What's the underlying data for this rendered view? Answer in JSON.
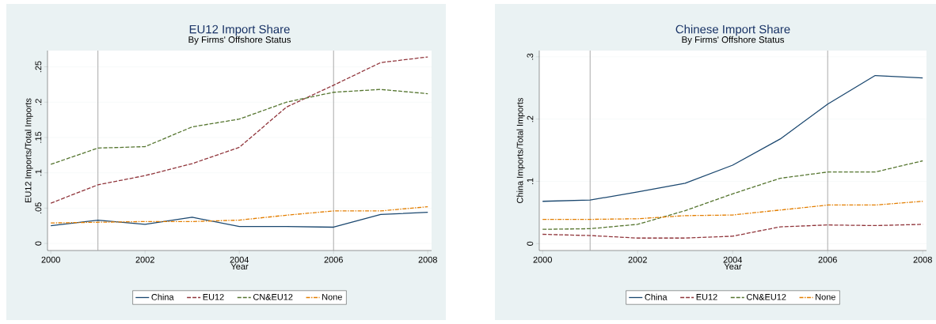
{
  "chart_data": [
    {
      "type": "line",
      "title": "EU12 Import Share",
      "subtitle": "By Firms' Offshore Status",
      "xlabel": "Year",
      "ylabel": "EU12 Imports/Total Imports",
      "x": [
        2000,
        2001,
        2002,
        2003,
        2004,
        2005,
        2006,
        2007,
        2008
      ],
      "series": [
        {
          "name": "China",
          "color": "#1a476f",
          "line_style": "solid",
          "values": [
            0.025,
            0.033,
            0.027,
            0.037,
            0.024,
            0.024,
            0.023,
            0.041,
            0.044
          ]
        },
        {
          "name": "EU12",
          "color": "#90353b",
          "line_style": "dashed",
          "values": [
            0.057,
            0.083,
            0.096,
            0.113,
            0.136,
            0.193,
            0.224,
            0.256,
            0.264
          ]
        },
        {
          "name": "CN&EU12",
          "color": "#55752f",
          "line_style": "dashed",
          "values": [
            0.112,
            0.135,
            0.137,
            0.165,
            0.176,
            0.2,
            0.214,
            0.218,
            0.212
          ]
        },
        {
          "name": "None",
          "color": "#e37e00",
          "line_style": "dashdot",
          "values": [
            0.029,
            0.03,
            0.031,
            0.031,
            0.033,
            0.04,
            0.046,
            0.046,
            0.052
          ]
        }
      ],
      "xlim": [
        1999.93,
        2008.08
      ],
      "ylim": [
        -0.01,
        0.273
      ],
      "xticks": [
        2000,
        2002,
        2004,
        2006,
        2008
      ],
      "yticks": [
        {
          "value": 0,
          "label": "0"
        },
        {
          "value": 0.05,
          "label": ".05"
        },
        {
          "value": 0.1,
          "label": ".1"
        },
        {
          "value": 0.15,
          "label": ".15"
        },
        {
          "value": 0.2,
          "label": ".2"
        },
        {
          "value": 0.25,
          "label": ".25"
        }
      ],
      "ref_lines": [
        {
          "axis": "x",
          "value": 2001,
          "color": "#a0a0a0"
        },
        {
          "axis": "x",
          "value": 2006,
          "color": "#a0a0a0"
        }
      ],
      "grid": "y",
      "legend": "bottom",
      "marker": "none"
    },
    {
      "type": "line",
      "title": "Chinese Import Share",
      "subtitle": "By Firms' Offshore Status",
      "xlabel": "Year",
      "ylabel": "China Imports/Total Imports",
      "x": [
        2000,
        2001,
        2002,
        2003,
        2004,
        2005,
        2006,
        2007,
        2008
      ],
      "series": [
        {
          "name": "China",
          "color": "#1a476f",
          "line_style": "solid",
          "values": [
            0.068,
            0.07,
            0.083,
            0.097,
            0.126,
            0.168,
            0.224,
            0.27,
            0.266
          ]
        },
        {
          "name": "EU12",
          "color": "#90353b",
          "line_style": "dashed",
          "values": [
            0.015,
            0.013,
            0.009,
            0.009,
            0.012,
            0.027,
            0.03,
            0.029,
            0.031
          ]
        },
        {
          "name": "CN&EU12",
          "color": "#55752f",
          "line_style": "dashed",
          "values": [
            0.023,
            0.024,
            0.031,
            0.053,
            0.08,
            0.105,
            0.115,
            0.115,
            0.133
          ]
        },
        {
          "name": "None",
          "color": "#e37e00",
          "line_style": "dashdot",
          "values": [
            0.039,
            0.039,
            0.04,
            0.045,
            0.046,
            0.054,
            0.062,
            0.062,
            0.068
          ]
        }
      ],
      "xlim": [
        1999.93,
        2008.08
      ],
      "ylim": [
        -0.011,
        0.31
      ],
      "xticks": [
        2000,
        2002,
        2004,
        2006,
        2008
      ],
      "yticks": [
        {
          "value": 0,
          "label": "0"
        },
        {
          "value": 0.1,
          "label": ".1"
        },
        {
          "value": 0.2,
          "label": ".2"
        },
        {
          "value": 0.3,
          "label": ".3"
        }
      ],
      "ref_lines": [
        {
          "axis": "x",
          "value": 2001,
          "color": "#a0a0a0"
        },
        {
          "axis": "x",
          "value": 2006,
          "color": "#a0a0a0"
        }
      ],
      "grid": "y",
      "legend": "bottom",
      "marker": "none"
    }
  ]
}
